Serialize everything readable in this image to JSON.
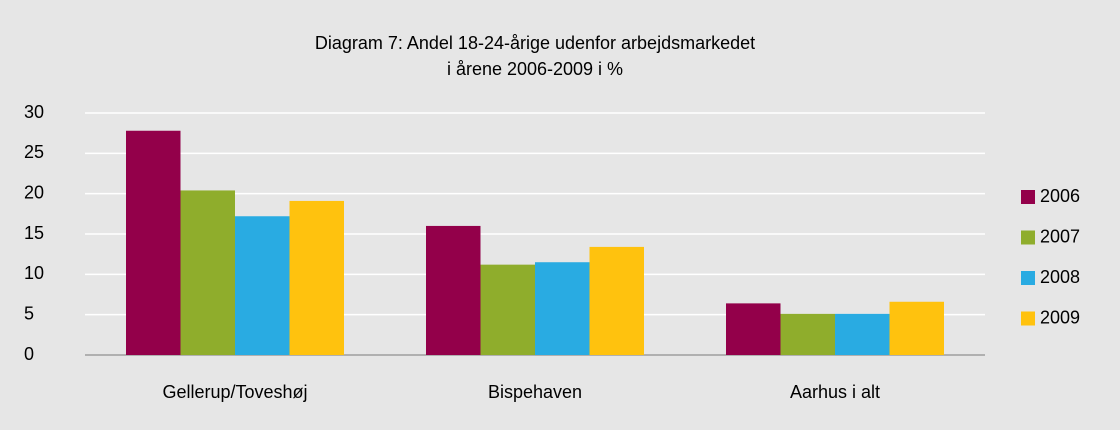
{
  "chart_data": {
    "type": "bar",
    "title": [
      "Diagram 7: Andel 18-24-årige udenfor arbejdsmarkedet",
      "i årene 2006-2009 i %"
    ],
    "categories": [
      "Gellerup/Toveshøj",
      "Bispehaven",
      "Aarhus i alt"
    ],
    "series": [
      {
        "name": "2006",
        "color": "#93004a",
        "values": [
          27.8,
          16.0,
          6.4
        ]
      },
      {
        "name": "2007",
        "color": "#8fad2c",
        "values": [
          20.4,
          11.2,
          5.1
        ]
      },
      {
        "name": "2008",
        "color": "#29abe2",
        "values": [
          17.2,
          11.5,
          5.1
        ]
      },
      {
        "name": "2009",
        "color": "#ffc20e",
        "values": [
          19.1,
          13.4,
          6.6
        ]
      }
    ],
    "ylim": [
      0,
      30
    ],
    "yticks": [
      0,
      5,
      10,
      15,
      20,
      25,
      30
    ],
    "grid": true,
    "legend": "right"
  }
}
